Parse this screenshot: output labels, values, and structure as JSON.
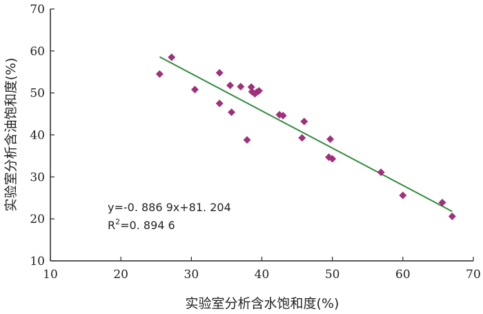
{
  "chart_data": {
    "type": "scatter",
    "xlabel": "实验室分析含水饱和度(%)",
    "ylabel": "实验室分析含油饱和度(%)",
    "xlim": [
      10,
      70
    ],
    "ylim": [
      10,
      70
    ],
    "xticks": [
      "10",
      "20",
      "30",
      "40",
      "50",
      "60",
      "70"
    ],
    "yticks": [
      "10",
      "20",
      "30",
      "40",
      "50",
      "60",
      "70"
    ],
    "grid": false,
    "marker_color": "#a0307a",
    "trend_color": "#2e8b3a",
    "points": [
      {
        "x": 25.5,
        "y": 54.5
      },
      {
        "x": 27.2,
        "y": 58.5
      },
      {
        "x": 30.5,
        "y": 50.8
      },
      {
        "x": 34.0,
        "y": 54.8
      },
      {
        "x": 34.0,
        "y": 47.5
      },
      {
        "x": 35.5,
        "y": 51.8
      },
      {
        "x": 35.7,
        "y": 45.4
      },
      {
        "x": 37.0,
        "y": 51.5
      },
      {
        "x": 37.9,
        "y": 38.8
      },
      {
        "x": 38.5,
        "y": 51.4
      },
      {
        "x": 38.6,
        "y": 50.3
      },
      {
        "x": 39.0,
        "y": 49.8
      },
      {
        "x": 39.3,
        "y": 50.2
      },
      {
        "x": 39.6,
        "y": 50.5
      },
      {
        "x": 42.5,
        "y": 44.8
      },
      {
        "x": 43.0,
        "y": 44.6
      },
      {
        "x": 45.7,
        "y": 39.3
      },
      {
        "x": 46.0,
        "y": 43.2
      },
      {
        "x": 49.5,
        "y": 34.7
      },
      {
        "x": 49.7,
        "y": 39.0
      },
      {
        "x": 50.0,
        "y": 34.3
      },
      {
        "x": 56.9,
        "y": 31.1
      },
      {
        "x": 60.0,
        "y": 25.6
      },
      {
        "x": 65.6,
        "y": 23.9
      },
      {
        "x": 67.0,
        "y": 20.6
      }
    ],
    "trendline": {
      "slope": -0.8869,
      "intercept": 81.204,
      "x_range": [
        25.5,
        67.0
      ]
    },
    "annotations": {
      "equation": "y=-0. 886 9x+81. 204",
      "r2_prefix": "R",
      "r2_sup": "2",
      "r2_value": "=0. 894 6"
    }
  }
}
